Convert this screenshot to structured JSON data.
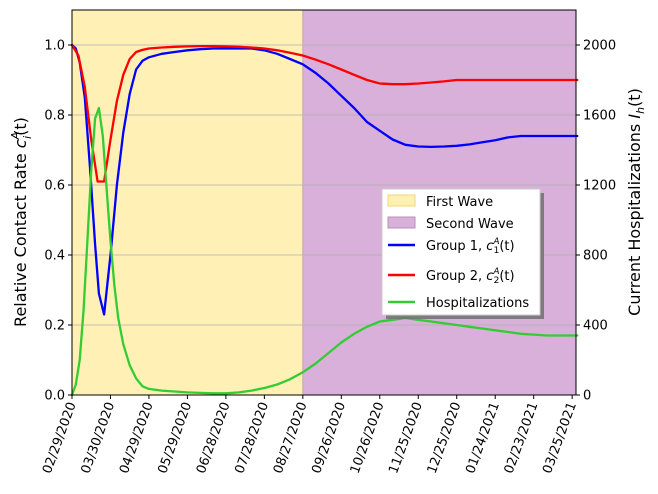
{
  "chart_data": {
    "type": "line",
    "x_axis": {
      "tick_labels": [
        "02/29/2020",
        "03/30/2020",
        "04/29/2020",
        "05/29/2020",
        "06/28/2020",
        "07/28/2020",
        "08/27/2020",
        "09/26/2020",
        "10/26/2020",
        "11/25/2020",
        "12/25/2020",
        "01/24/2021",
        "02/23/2021",
        "03/25/2021"
      ],
      "range": [
        "02/29/2020",
        "03/28/2021"
      ]
    },
    "y_left": {
      "label_main": "Relative Contact Rate ",
      "label_symbol": "c",
      "label_sub": "i",
      "label_sup": "A",
      "label_tail": "(t)",
      "range": [
        0,
        1.1
      ],
      "ticks": [
        "0.0",
        "0.2",
        "0.4",
        "0.6",
        "0.8",
        "1.0"
      ]
    },
    "y_right": {
      "label_main": "Current Hospitalizations ",
      "label_symbol": "I",
      "label_sub": "h",
      "label_tail": "(t)",
      "range": [
        0,
        2200
      ],
      "ticks": [
        "0",
        "400",
        "800",
        "1200",
        "1600",
        "2000"
      ]
    },
    "grid": "horizontal, left axis",
    "legend_position": "center-right",
    "shaded_regions": [
      {
        "name": "First Wave",
        "from": "02/29/2020",
        "to": "08/27/2020",
        "color": "#fff0b5"
      },
      {
        "name": "Second Wave",
        "from": "08/27/2020",
        "to": "03/28/2021",
        "color": "#d8b0d9"
      }
    ],
    "series": [
      {
        "name": "Group 1, ",
        "name_symbol": "c",
        "name_sub": "1",
        "name_sup": "A",
        "name_tail": "(t)",
        "axis": "left",
        "color": "#0000ff",
        "x": [
          0,
          3,
          6,
          10,
          14,
          18,
          21,
          25,
          30,
          35,
          40,
          45,
          50,
          55,
          60,
          70,
          80,
          90,
          100,
          110,
          120,
          130,
          140,
          150,
          160,
          170,
          180,
          190,
          200,
          210,
          220,
          230,
          240,
          250,
          260,
          270,
          280,
          290,
          300,
          310,
          320,
          330,
          340,
          350,
          360,
          370,
          380,
          390,
          394
        ],
        "y": [
          1.0,
          0.99,
          0.95,
          0.85,
          0.65,
          0.43,
          0.29,
          0.23,
          0.4,
          0.6,
          0.75,
          0.86,
          0.93,
          0.955,
          0.965,
          0.975,
          0.98,
          0.985,
          0.988,
          0.99,
          0.99,
          0.99,
          0.99,
          0.985,
          0.975,
          0.96,
          0.945,
          0.92,
          0.89,
          0.855,
          0.82,
          0.78,
          0.755,
          0.73,
          0.715,
          0.71,
          0.709,
          0.71,
          0.712,
          0.716,
          0.722,
          0.728,
          0.736,
          0.74,
          0.74,
          0.74,
          0.74,
          0.74,
          0.74
        ]
      },
      {
        "name": "Group 2, ",
        "name_symbol": "c",
        "name_sub": "2",
        "name_sup": "A",
        "name_tail": "(t)",
        "axis": "left",
        "color": "#ff0000",
        "x": [
          0,
          5,
          10,
          15,
          20,
          25,
          30,
          35,
          40,
          45,
          50,
          55,
          60,
          70,
          80,
          90,
          100,
          110,
          120,
          130,
          140,
          150,
          160,
          170,
          180,
          190,
          200,
          210,
          220,
          230,
          240,
          250,
          260,
          270,
          280,
          290,
          300,
          310,
          320,
          330,
          340,
          350,
          360,
          370,
          380,
          390,
          394
        ],
        "y": [
          1.0,
          0.97,
          0.88,
          0.73,
          0.61,
          0.61,
          0.73,
          0.84,
          0.915,
          0.96,
          0.98,
          0.986,
          0.99,
          0.993,
          0.995,
          0.996,
          0.997,
          0.997,
          0.996,
          0.995,
          0.993,
          0.99,
          0.985,
          0.978,
          0.97,
          0.958,
          0.945,
          0.93,
          0.915,
          0.9,
          0.89,
          0.888,
          0.888,
          0.89,
          0.893,
          0.896,
          0.9,
          0.9,
          0.9,
          0.9,
          0.9,
          0.9,
          0.9,
          0.9,
          0.9,
          0.9,
          0.9
        ]
      },
      {
        "name": "Hospitalizations",
        "axis": "right",
        "color": "#33cc33",
        "x": [
          0,
          3,
          6,
          9,
          12,
          15,
          18,
          21,
          24,
          27,
          30,
          33,
          36,
          40,
          45,
          50,
          55,
          60,
          70,
          80,
          90,
          100,
          110,
          120,
          130,
          140,
          150,
          160,
          170,
          180,
          190,
          200,
          210,
          220,
          230,
          240,
          250,
          260,
          270,
          280,
          290,
          300,
          310,
          320,
          330,
          340,
          350,
          360,
          370,
          380,
          390,
          394
        ],
        "y": [
          0,
          60,
          200,
          480,
          880,
          1280,
          1580,
          1640,
          1480,
          1180,
          880,
          630,
          440,
          290,
          170,
          95,
          50,
          35,
          25,
          20,
          15,
          12,
          10,
          10,
          15,
          25,
          40,
          60,
          90,
          130,
          180,
          240,
          300,
          350,
          390,
          420,
          430,
          440,
          430,
          420,
          410,
          400,
          390,
          380,
          370,
          360,
          350,
          345,
          340,
          340,
          340,
          340
        ]
      }
    ]
  }
}
